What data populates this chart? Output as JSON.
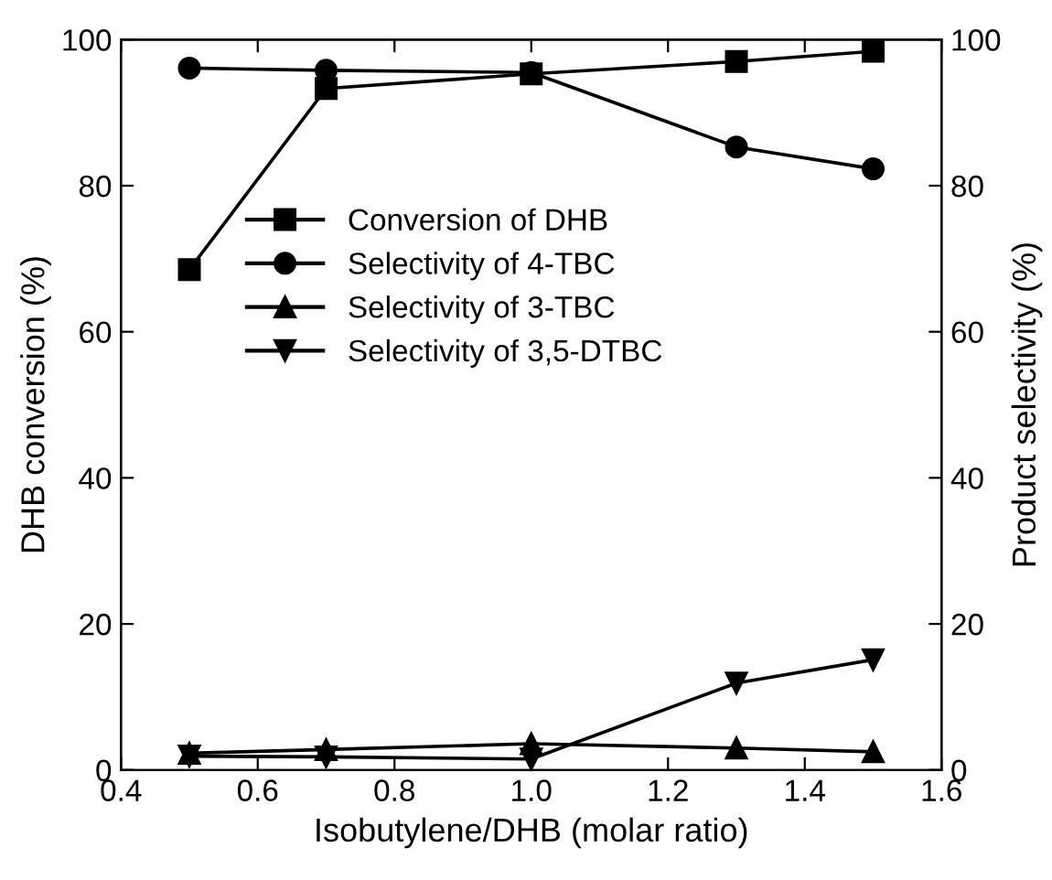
{
  "chart_data": {
    "type": "line",
    "xlabel": "Isobutylene/DHB (molar ratio)",
    "ylabel": "DHB conversion (%)",
    "y2label": "Product selectivity (%)",
    "x": [
      0.5,
      0.7,
      1.0,
      1.3,
      1.5
    ],
    "series": [
      {
        "name": "Conversion of DHB",
        "color": "#000000",
        "marker": "square",
        "values": [
          68.5,
          93.3,
          95.3,
          97,
          98.4
        ]
      },
      {
        "name": "Selectivity of 4-TBC",
        "color": "#000000",
        "marker": "circle",
        "values": [
          96.1,
          95.8,
          95.5,
          85.3,
          82.3
        ]
      },
      {
        "name": "Selectivity of 3-TBC",
        "color": "#000000",
        "marker": "triangle",
        "values": [
          2.3,
          2.8,
          3.6,
          3.0,
          2.5
        ]
      },
      {
        "name": "Selectivity of 3,5-DTBC",
        "color": "#000000",
        "marker": "triangle_down",
        "values": [
          1.9,
          1.8,
          1.5,
          11.9,
          15.1
        ]
      }
    ],
    "xlim": [
      0.4,
      1.6
    ],
    "xticks": [
      {
        "value": 0.4,
        "label": "0.4"
      },
      {
        "value": 0.6,
        "label": "0.6"
      },
      {
        "value": 0.8,
        "label": "0.8"
      },
      {
        "value": 1.0,
        "label": "1.0"
      },
      {
        "value": 1.2,
        "label": "1.2"
      },
      {
        "value": 1.4,
        "label": "1.4"
      },
      {
        "value": 1.6,
        "label": "1.6"
      }
    ],
    "ylim": [
      0,
      100
    ],
    "yticks": [
      0,
      20,
      40,
      60,
      80,
      100
    ],
    "y2lim": [
      0,
      100
    ],
    "y2ticks": [
      0,
      20,
      40,
      60,
      80,
      100
    ],
    "grid": false,
    "legend": "center left",
    "line_style": "solid"
  }
}
